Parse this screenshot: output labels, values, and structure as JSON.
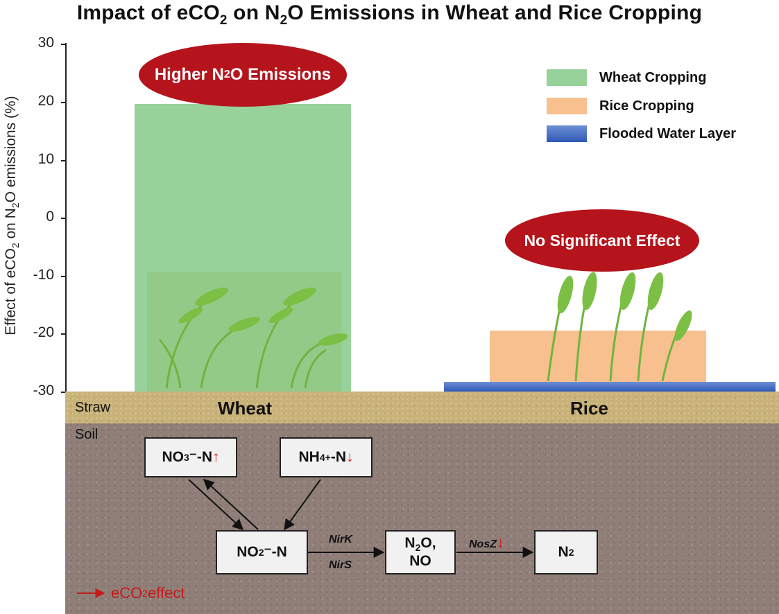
{
  "title": {
    "pre": "Impact of eCO",
    "sub1": "2",
    "mid": " on N",
    "sub2": "2",
    "post": "O Emissions in Wheat and Rice Cropping"
  },
  "y_axis": {
    "label_pre": "Effect of eCO",
    "label_sub1": "2",
    "label_mid": " on N",
    "label_sub2": "2",
    "label_post": "O emissions (%)",
    "ticks": [
      "30",
      "20",
      "10",
      "0",
      "-10",
      "-20",
      "-30"
    ]
  },
  "callouts": {
    "wheat_pre": "Higher N",
    "wheat_sub": "2",
    "wheat_post": "O Emissions",
    "rice": "No Significant Effect"
  },
  "legend": [
    {
      "label": "Wheat Cropping",
      "color": "#98d29b"
    },
    {
      "label": "Rice Cropping",
      "color": "#f7c08e"
    },
    {
      "label": "Flooded Water Layer",
      "color": "#3f66bf"
    }
  ],
  "chart_data": {
    "type": "bar",
    "categories": [
      "Wheat",
      "Rice"
    ],
    "values": [
      19.5,
      -19.5
    ],
    "ylim": [
      -30,
      30
    ],
    "ylabel": "Effect of eCO2 on N2O emissions (%)",
    "title": "Impact of eCO2 on N2O Emissions in Wheat and Rice Cropping"
  },
  "layers": {
    "straw": "Straw",
    "soil": "Soil"
  },
  "crops": {
    "wheat": "Wheat",
    "rice": "Rice"
  },
  "pathway": {
    "no3": {
      "base": "NO",
      "sub": "3",
      "rest": "⁻-N",
      "arrow": "↑"
    },
    "nh4": {
      "base": "NH",
      "sub": "4",
      "sup": "+",
      "rest": "-N",
      "arrow": "↓"
    },
    "no2": {
      "base": "NO",
      "sub": "2",
      "rest": "⁻-N"
    },
    "n2o": {
      "base": "N",
      "sub": "2",
      "rest": "O,",
      "line2": "NO"
    },
    "n2": {
      "base": "N",
      "sub": "2"
    },
    "enzymes": {
      "nirk": "NirK",
      "nirs": "NirS",
      "nosz": "NosZ",
      "nosz_arrow": "↓"
    }
  },
  "effect_legend": {
    "pre": "eCO",
    "sub": "2",
    "post": " effect"
  },
  "colors": {
    "accent_red": "#c41a1a",
    "callout_red": "#b5141c"
  }
}
